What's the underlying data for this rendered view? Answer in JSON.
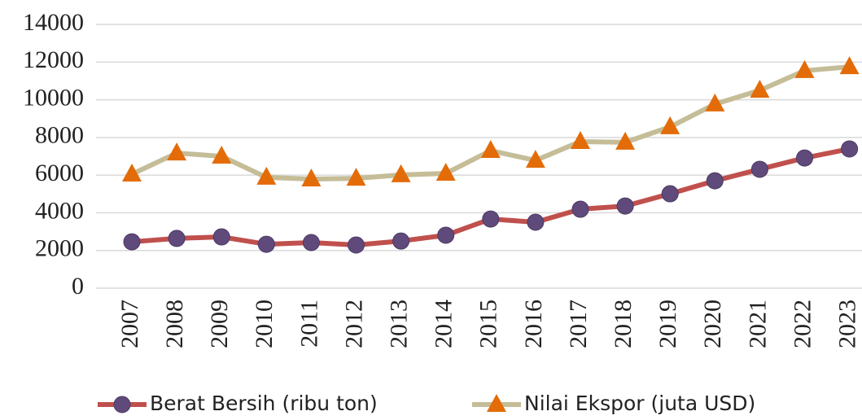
{
  "chart_data": {
    "type": "line",
    "categories": [
      "2007",
      "2008",
      "2009",
      "2010",
      "2011",
      "2012",
      "2013",
      "2014",
      "2015",
      "2016",
      "2017",
      "2018",
      "2019",
      "2020",
      "2021",
      "2022",
      "2023"
    ],
    "series": [
      {
        "name": "Berat Bersih (ribu ton)",
        "color": "#c0504d",
        "marker_color": "#604a7b",
        "marker": "circle",
        "values": [
          2460,
          2640,
          2720,
          2330,
          2420,
          2290,
          2500,
          2810,
          3670,
          3500,
          4190,
          4360,
          5010,
          5700,
          6310,
          6910,
          7390
        ]
      },
      {
        "name": "Nilai Ekspor (juta USD)",
        "color": "#c4bd97",
        "marker_color": "#e36c09",
        "marker": "triangle",
        "values": [
          6050,
          7170,
          7000,
          5880,
          5790,
          5830,
          6010,
          6090,
          7300,
          6780,
          7780,
          7740,
          8560,
          9770,
          10500,
          11540,
          11750
        ]
      }
    ],
    "ylim": [
      0,
      14000
    ],
    "yticks": [
      0,
      2000,
      4000,
      6000,
      8000,
      10000,
      12000,
      14000
    ],
    "grid": true,
    "legend": "bottom"
  }
}
